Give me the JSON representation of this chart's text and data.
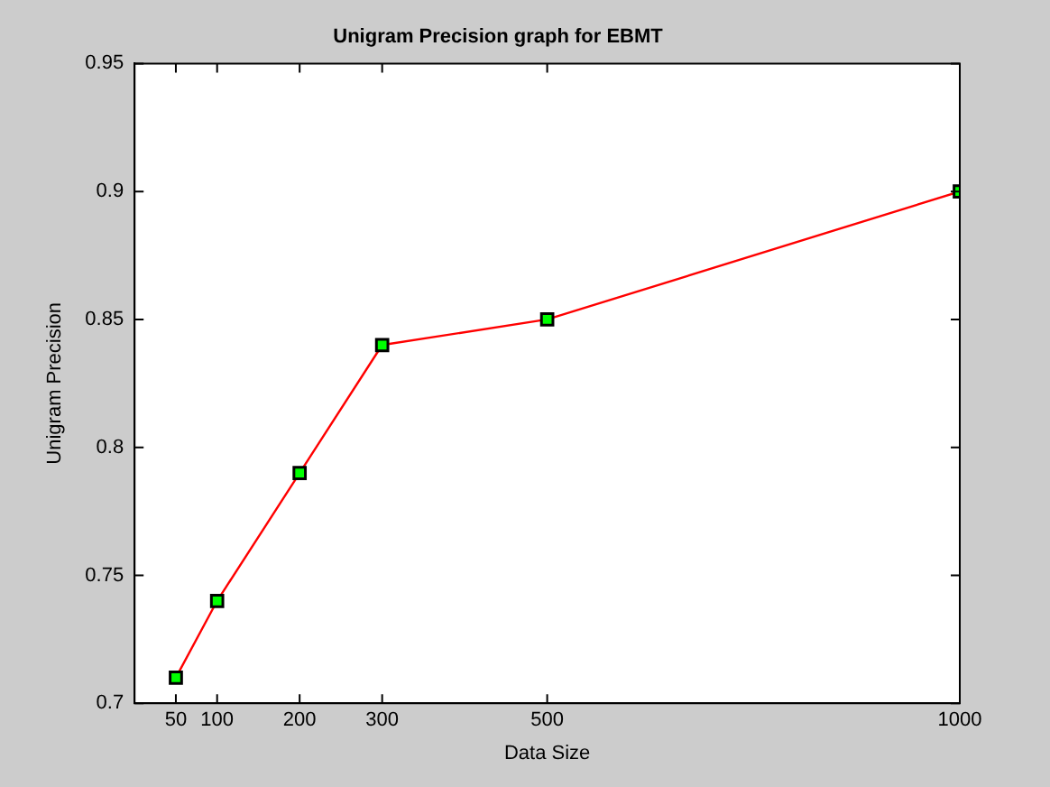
{
  "chart_data": {
    "type": "line",
    "title": "Unigram Precision graph for EBMT",
    "xlabel": "Data Size",
    "ylabel": "Unigram Precision",
    "x": [
      50,
      100,
      200,
      300,
      500,
      1000
    ],
    "series": [
      {
        "color": "#ff0000",
        "values": [
          0.71,
          0.74,
          0.79,
          0.84,
          0.85,
          0.9
        ]
      }
    ],
    "xlim": [
      0,
      1000
    ],
    "xticks": [
      50,
      100,
      200,
      300,
      500,
      1000
    ],
    "ylim": [
      0.7,
      0.95
    ],
    "yticks": [
      0.7,
      0.75,
      0.8,
      0.85,
      0.9,
      0.95
    ],
    "marker": "square",
    "line_style": "solid",
    "grid": false,
    "legend": false
  }
}
